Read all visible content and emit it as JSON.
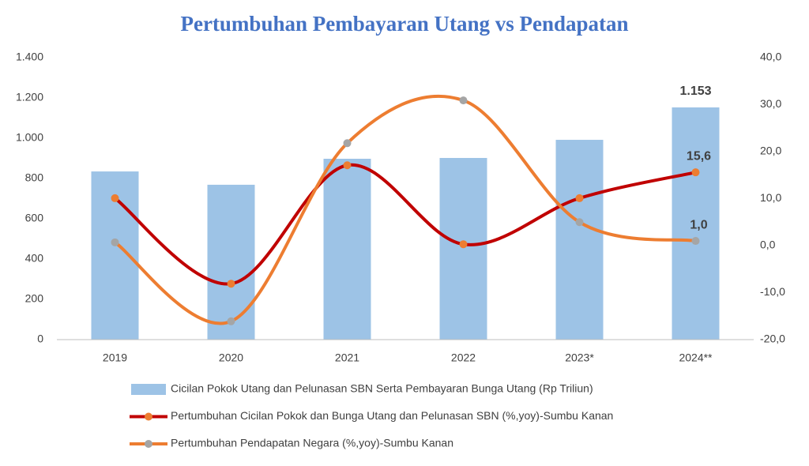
{
  "chart_data": {
    "type": "bar-line",
    "title": "Pertumbuhan Pembayaran Utang vs Pendapatan",
    "categories": [
      "2019",
      "2020",
      "2021",
      "2022",
      "2023*",
      "2024**"
    ],
    "series": [
      {
        "name": "Cicilan Pokok Utang dan Pelunasan SBN Serta Pembayaran Bunga Utang (Rp Triliun)",
        "type": "bar",
        "color": "#9dc3e6",
        "values": [
          835,
          769,
          898,
          902,
          992,
          1153
        ],
        "value_labels": [
          null,
          null,
          null,
          null,
          null,
          "1.153"
        ]
      },
      {
        "name": "Pertumbuhan Cicilan Pokok dan Bunga Utang dan Pelunasan SBN (%,yoy)-Sumbu Kanan",
        "type": "line",
        "axis": "y2",
        "color": "#c00000",
        "marker_color": "#ed7d31",
        "values": [
          10.1,
          -8.1,
          17.1,
          0.3,
          10.1,
          15.6
        ],
        "value_labels": [
          null,
          null,
          null,
          null,
          null,
          "15,6"
        ]
      },
      {
        "name": "Pertumbuhan Pendapatan Negara (%,yoy)-Sumbu Kanan",
        "type": "line",
        "axis": "y2",
        "color": "#ed7d31",
        "marker_color": "#a5a5a5",
        "values": [
          0.7,
          -16.1,
          21.8,
          30.9,
          5.0,
          1.0
        ],
        "value_labels": [
          null,
          null,
          null,
          null,
          null,
          "1,0"
        ]
      }
    ],
    "ylim": [
      0,
      1400
    ],
    "yticks": [
      0,
      200,
      400,
      600,
      800,
      {
        "value": 1000,
        "label": "1.000"
      },
      {
        "value": 1200,
        "label": "1.200"
      },
      {
        "value": 1400,
        "label": "1.400"
      }
    ],
    "y2lim": [
      -20,
      40
    ],
    "y2ticks": [
      {
        "value": -20,
        "label": "-20,0"
      },
      {
        "value": -10,
        "label": "-10,0"
      },
      {
        "value": 0,
        "label": "0,0"
      },
      {
        "value": 10,
        "label": "10,0"
      },
      {
        "value": 20,
        "label": "20,0"
      },
      {
        "value": 30,
        "label": "30,0"
      },
      {
        "value": 40,
        "label": "40,0"
      }
    ],
    "grid": false,
    "legend": "bottom"
  }
}
